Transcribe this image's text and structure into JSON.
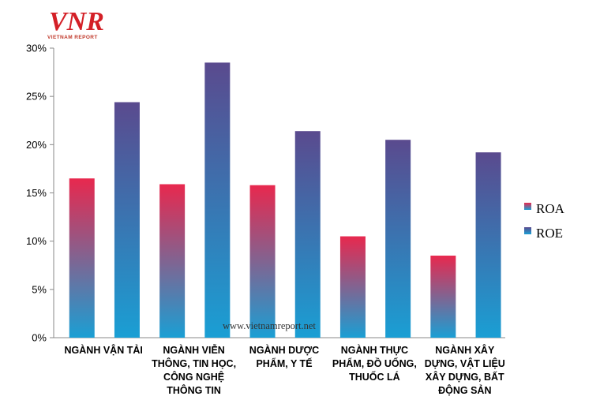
{
  "logo": {
    "mark": "VNR",
    "subtitle": "VIETNAM REPORT",
    "colors": {
      "primary": "#d42027",
      "secondary": "#c9a27a"
    }
  },
  "watermark": "www.vietnamreport.net",
  "chart_data": {
    "type": "bar",
    "categories": [
      [
        "NGÀNH VẬN TẢI"
      ],
      [
        "NGÀNH VIỄN",
        "THÔNG, TIN HỌC,",
        "CÔNG NGHỆ",
        "THÔNG TIN"
      ],
      [
        "NGÀNH DƯỢC",
        "PHẨM, Y TẾ"
      ],
      [
        "NGÀNH THỰC",
        "PHẨM, ĐỒ UỐNG,",
        "THUỐC LÁ"
      ],
      [
        "NGÀNH XÂY",
        "DỰNG, VẬT LIỆU",
        "XÂY DỰNG, BẤT",
        "ĐỘNG SẢN"
      ]
    ],
    "series": [
      {
        "name": "ROA",
        "values": [
          16.5,
          15.9,
          15.8,
          10.5,
          8.5
        ],
        "color_top": "#e8284e",
        "color_bottom": "#1a9fd4"
      },
      {
        "name": "ROE",
        "values": [
          24.4,
          28.5,
          21.4,
          20.5,
          19.2
        ],
        "color_top": "#5a4a8e",
        "color_bottom": "#1a9fd4"
      }
    ],
    "ylim": [
      0,
      30
    ],
    "yticks": [
      "0%",
      "5%",
      "10%",
      "15%",
      "20%",
      "25%",
      "30%"
    ],
    "ytick_values": [
      0,
      5,
      10,
      15,
      20,
      25,
      30
    ],
    "grid": false,
    "legend_position": "right"
  }
}
